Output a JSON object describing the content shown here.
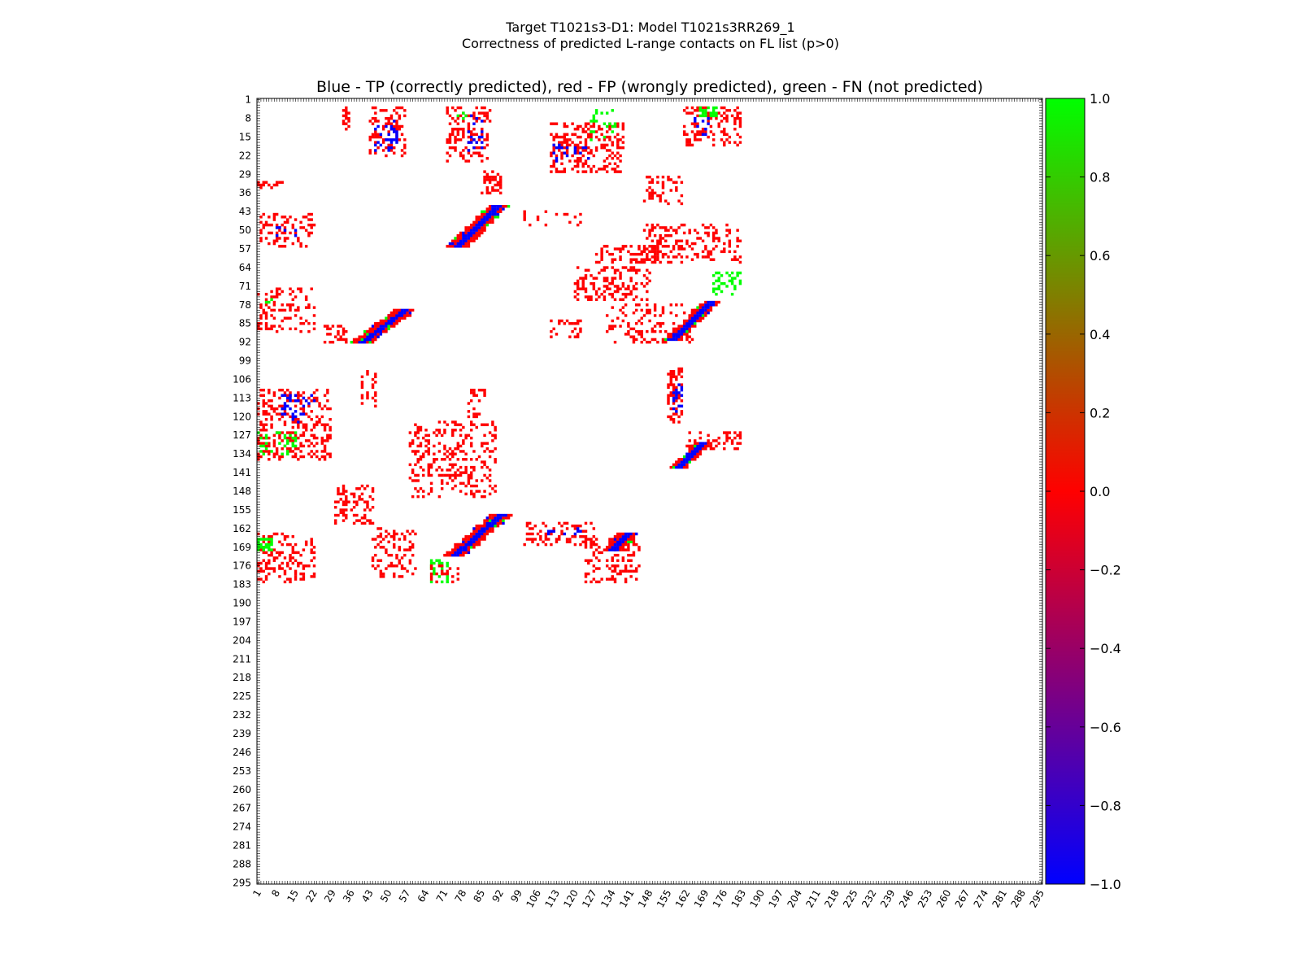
{
  "chart_data": {
    "type": "heatmap",
    "suptitle_line1": "Target T1021s3-D1: Model T1021s3RR269_1",
    "suptitle_line2": "Correctness of predicted L-range contacts on FL list (p>0)",
    "title": "Blue - TP (correctly predicted), red - FP (wrongly predicted), green - FN (not predicted)",
    "x_range": [
      1,
      295
    ],
    "y_range": [
      1,
      295
    ],
    "y_inverted": true,
    "tick_labels": [
      "1",
      "8",
      "15",
      "22",
      "29",
      "36",
      "43",
      "50",
      "57",
      "64",
      "71",
      "78",
      "85",
      "92",
      "99",
      "106",
      "113",
      "120",
      "127",
      "134",
      "141",
      "148",
      "155",
      "162",
      "169",
      "176",
      "183",
      "190",
      "197",
      "204",
      "211",
      "218",
      "225",
      "232",
      "239",
      "246",
      "253",
      "260",
      "267",
      "274",
      "281",
      "288",
      "295"
    ],
    "colorbar": {
      "range": [
        -1.0,
        1.0
      ],
      "colors": [
        "#0000ff",
        "#ff0000",
        "#00ff00"
      ],
      "tick_labels": [
        "1.0",
        "0.8",
        "0.6",
        "0.4",
        "0.2",
        "0.0",
        "−0.2",
        "−0.4",
        "−0.6",
        "−0.8",
        "−1.0"
      ]
    },
    "color_values": {
      "TP": -1.0,
      "FP": 0.0,
      "FN": 1.0
    },
    "regions": [
      {
        "class": "FP",
        "x": [
          33,
          35
        ],
        "y": [
          4,
          12
        ],
        "density": 0.5
      },
      {
        "class": "FP",
        "x": [
          43,
          56
        ],
        "y": [
          4,
          22
        ],
        "density": 0.3
      },
      {
        "class": "TP",
        "x": [
          45,
          53
        ],
        "y": [
          9,
          20
        ],
        "density": 0.2
      },
      {
        "class": "FP",
        "x": [
          72,
          88
        ],
        "y": [
          4,
          24
        ],
        "density": 0.3
      },
      {
        "class": "TP",
        "x": [
          79,
          86
        ],
        "y": [
          7,
          20
        ],
        "density": 0.1
      },
      {
        "class": "FN",
        "x": [
          76,
          79
        ],
        "y": [
          4,
          8
        ],
        "density": 0.2
      },
      {
        "class": "FP",
        "x": [
          111,
          138
        ],
        "y": [
          10,
          28
        ],
        "density": 0.35
      },
      {
        "class": "TP",
        "x": [
          112,
          125
        ],
        "y": [
          18,
          24
        ],
        "density": 0.2
      },
      {
        "class": "FN",
        "x": [
          126,
          135
        ],
        "y": [
          5,
          16
        ],
        "density": 0.2
      },
      {
        "class": "FP",
        "x": [
          161,
          182
        ],
        "y": [
          4,
          18
        ],
        "density": 0.3
      },
      {
        "class": "FN",
        "x": [
          167,
          173
        ],
        "y": [
          4,
          7
        ],
        "density": 0.5
      },
      {
        "class": "TP",
        "x": [
          165,
          170
        ],
        "y": [
          8,
          14
        ],
        "density": 0.2
      },
      {
        "class": "FP",
        "x": [
          85,
          92
        ],
        "y": [
          28,
          36
        ],
        "density": 0.45
      },
      {
        "class": "FP",
        "x": [
          1,
          10
        ],
        "y": [
          32,
          34
        ],
        "density": 0.4
      },
      {
        "class": "FP",
        "x": [
          146,
          160
        ],
        "y": [
          30,
          40
        ],
        "density": 0.25
      },
      {
        "class": "FP",
        "x": [
          1,
          22
        ],
        "y": [
          44,
          56
        ],
        "density": 0.25
      },
      {
        "class": "TP",
        "x": [
          8,
          16
        ],
        "y": [
          48,
          52
        ],
        "density": 0.2
      },
      {
        "class": "FP",
        "x": [
          101,
          122
        ],
        "y": [
          43,
          48
        ],
        "density": 0.2
      },
      {
        "class": "FP",
        "x": [
          146,
          182
        ],
        "y": [
          48,
          62
        ],
        "density": 0.25
      },
      {
        "class": "FP",
        "x": [
          128,
          150
        ],
        "y": [
          56,
          62
        ],
        "density": 0.3
      },
      {
        "class": "FP",
        "x": [
          120,
          148
        ],
        "y": [
          64,
          76
        ],
        "density": 0.3
      },
      {
        "class": "FN",
        "x": [
          172,
          182
        ],
        "y": [
          66,
          74
        ],
        "density": 0.35
      },
      {
        "class": "FP",
        "x": [
          1,
          22
        ],
        "y": [
          72,
          88
        ],
        "density": 0.25
      },
      {
        "class": "FN",
        "x": [
          1,
          6
        ],
        "y": [
          76,
          80
        ],
        "density": 0.2
      },
      {
        "class": "FP",
        "x": [
          26,
          35
        ],
        "y": [
          86,
          92
        ],
        "density": 0.35
      },
      {
        "class": "FP",
        "x": [
          111,
          122
        ],
        "y": [
          84,
          90
        ],
        "density": 0.3
      },
      {
        "class": "FP",
        "x": [
          132,
          165
        ],
        "y": [
          78,
          92
        ],
        "density": 0.22
      },
      {
        "class": "FP",
        "x": [
          155,
          160
        ],
        "y": [
          102,
          122
        ],
        "density": 0.45
      },
      {
        "class": "TP",
        "x": [
          157,
          160
        ],
        "y": [
          108,
          118
        ],
        "density": 0.25
      },
      {
        "class": "FP",
        "x": [
          40,
          45
        ],
        "y": [
          103,
          116
        ],
        "density": 0.25
      },
      {
        "class": "FP",
        "x": [
          1,
          28
        ],
        "y": [
          110,
          136
        ],
        "density": 0.3
      },
      {
        "class": "TP",
        "x": [
          10,
          22
        ],
        "y": [
          112,
          122
        ],
        "density": 0.2
      },
      {
        "class": "FN",
        "x": [
          1,
          15
        ],
        "y": [
          126,
          134
        ],
        "density": 0.2
      },
      {
        "class": "FP",
        "x": [
          80,
          86
        ],
        "y": [
          110,
          120
        ],
        "density": 0.3
      },
      {
        "class": "FP",
        "x": [
          58,
          90
        ],
        "y": [
          122,
          150
        ],
        "density": 0.25
      },
      {
        "class": "FP",
        "x": [
          162,
          182
        ],
        "y": [
          126,
          132
        ],
        "density": 0.3
      },
      {
        "class": "FP",
        "x": [
          30,
          44
        ],
        "y": [
          146,
          160
        ],
        "density": 0.3
      },
      {
        "class": "FP",
        "x": [
          101,
          127
        ],
        "y": [
          160,
          168
        ],
        "density": 0.3
      },
      {
        "class": "TP",
        "x": [
          110,
          122
        ],
        "y": [
          162,
          164
        ],
        "density": 0.2
      },
      {
        "class": "FP",
        "x": [
          44,
          60
        ],
        "y": [
          162,
          180
        ],
        "density": 0.25
      },
      {
        "class": "FP",
        "x": [
          1,
          22
        ],
        "y": [
          164,
          182
        ],
        "density": 0.3
      },
      {
        "class": "FN",
        "x": [
          1,
          6
        ],
        "y": [
          166,
          170
        ],
        "density": 0.5
      },
      {
        "class": "FP",
        "x": [
          124,
          144
        ],
        "y": [
          166,
          182
        ],
        "density": 0.3
      },
      {
        "class": "FN",
        "x": [
          66,
          72
        ],
        "y": [
          174,
          182
        ],
        "density": 0.3
      },
      {
        "class": "FP",
        "x": [
          66,
          76
        ],
        "y": [
          176,
          182
        ],
        "density": 0.3
      }
    ],
    "diagonals": [
      {
        "start": [
          76,
          56
        ],
        "end": [
          91,
          41
        ],
        "width": 4
      },
      {
        "start": [
          40,
          92
        ],
        "end": [
          56,
          80
        ],
        "width": 4
      },
      {
        "start": [
          157,
          91
        ],
        "end": [
          171,
          77
        ],
        "width": 3
      },
      {
        "start": [
          159,
          139
        ],
        "end": [
          168,
          130
        ],
        "width": 3
      },
      {
        "start": [
          75,
          172
        ],
        "end": [
          92,
          157
        ],
        "width": 4
      },
      {
        "start": [
          134,
          170
        ],
        "end": [
          140,
          164
        ],
        "width": 4
      }
    ]
  }
}
